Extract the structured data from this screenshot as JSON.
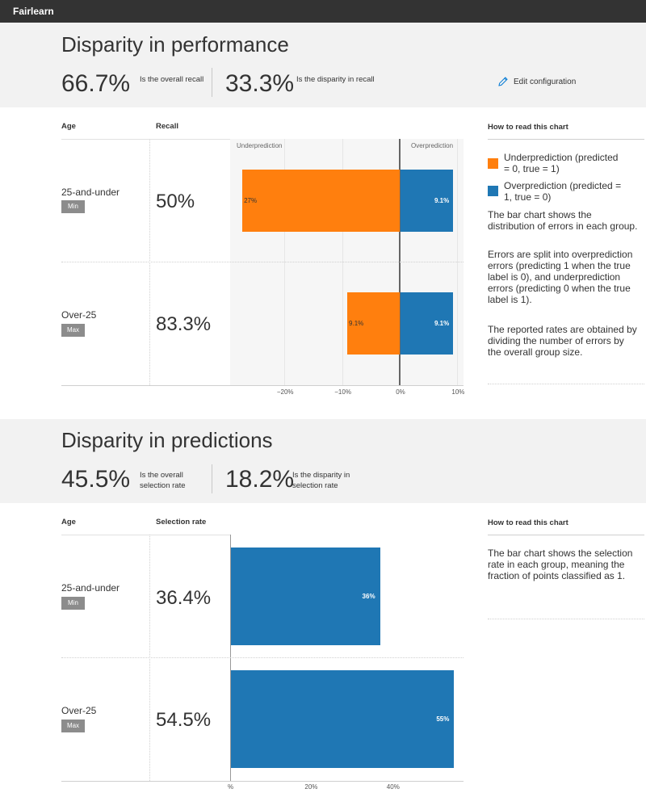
{
  "app": {
    "title": "Fairlearn"
  },
  "performance": {
    "heading": "Disparity in performance",
    "overall_value": "66.7%",
    "overall_label": "Is the overall recall",
    "disparity_value": "33.3%",
    "disparity_label": "Is the disparity in recall",
    "edit_label": "Edit configuration",
    "col_group": "Age",
    "col_metric": "Recall",
    "rows": [
      {
        "group": "25-and-under",
        "badge": "Min",
        "metric": "50%",
        "under_label": "27%",
        "over_label": "9.1%"
      },
      {
        "group": "Over-25",
        "badge": "Max",
        "metric": "83.3%",
        "under_label": "9.1%",
        "over_label": "9.1%"
      }
    ],
    "axis_left_label": "Underprediction",
    "axis_right_label": "Overprediction",
    "ticks": [
      "−20%",
      "−10%",
      "0%",
      "10%"
    ],
    "legend_title": "How to read this chart",
    "legend_under": "Underprediction (predicted = 0, true = 1)",
    "legend_over": "Overprediction (predicted = 1, true = 0)",
    "para1": "The bar chart shows the distribution of errors in each group.",
    "para2": "Errors are split into overprediction errors (predicting 1 when the true label is 0), and underprediction errors (predicting 0 when the true label is 1).",
    "para3": "The reported rates are obtained by dividing the number of errors by the overall group size."
  },
  "predictions": {
    "heading": "Disparity in predictions",
    "overall_value": "45.5%",
    "overall_label": "Is the overall selection rate",
    "disparity_value": "18.2%",
    "disparity_label": "Is the disparity in selection rate",
    "col_group": "Age",
    "col_metric": "Selection rate",
    "rows": [
      {
        "group": "25-and-under",
        "badge": "Min",
        "metric": "36.4%",
        "bar_label": "36%"
      },
      {
        "group": "Over-25",
        "badge": "Max",
        "metric": "54.5%",
        "bar_label": "55%"
      }
    ],
    "ticks": [
      "%",
      "20%",
      "40%"
    ],
    "legend_title": "How to read this chart",
    "para1": "The bar chart shows the selection rate in each group, meaning the fraction of points classified as 1."
  },
  "chart_data": [
    {
      "type": "bar",
      "orientation": "horizontal",
      "categories": [
        "25-and-under",
        "Over-25"
      ],
      "series": [
        {
          "name": "Underprediction",
          "values": [
            -27.3,
            -9.1
          ]
        },
        {
          "name": "Overprediction",
          "values": [
            9.1,
            9.1
          ]
        }
      ],
      "xlim": [
        -28,
        10
      ],
      "xticks": [
        -20,
        -10,
        0,
        10
      ],
      "x_unit": "%",
      "colors": {
        "Underprediction": "#ff7f0e",
        "Overprediction": "#1f77b4"
      }
    },
    {
      "type": "bar",
      "orientation": "horizontal",
      "categories": [
        "25-and-under",
        "Over-25"
      ],
      "values": [
        36.4,
        54.5
      ],
      "xlim": [
        0,
        57.5
      ],
      "xticks": [
        0,
        20,
        40
      ],
      "x_unit": "%",
      "colors": {
        "bar": "#1f77b4"
      }
    }
  ],
  "colors": {
    "under": "#ff7f0e",
    "over": "#1f77b4",
    "topbar": "#333333",
    "band": "#f2f2f2"
  },
  "icons": {
    "edit": "pencil-icon"
  }
}
